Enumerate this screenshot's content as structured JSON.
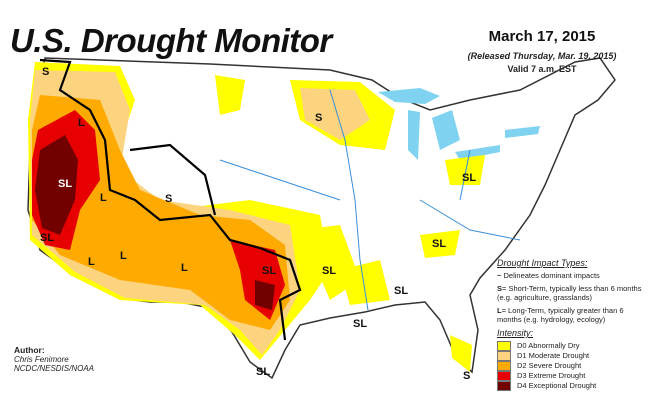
{
  "title": "U.S. Drought Monitor",
  "date": "March 17, 2015",
  "released": "(Released Thursday, Mar. 19, 2015)",
  "valid": "Valid 7 a.m. EST",
  "map_labels": [
    "S",
    "SL",
    "L",
    "S",
    "L",
    "L",
    "SL",
    "SL",
    "S",
    "SL",
    "SL",
    "SL",
    "L",
    "SL",
    "S",
    "SL"
  ],
  "legend": {
    "impact_title": "Drought Impact Types:",
    "delineates": "Delineates dominant impacts",
    "short_term_key": "S",
    "short_term": "= Short-Term, typically less than 6 months (e.g. agriculture, grasslands)",
    "long_term_key": "L",
    "long_term": "= Long-Term, typically greater than 6 months (e.g. hydrology, ecology)",
    "intensity_title": "Intensity:",
    "categories": [
      {
        "label": "D0 Abnormally Dry",
        "color": "#ffff00"
      },
      {
        "label": "D1 Moderate Drought",
        "color": "#fcd37f"
      },
      {
        "label": "D2 Severe Drought",
        "color": "#ffaa00"
      },
      {
        "label": "D3 Extreme Drought",
        "color": "#e60000"
      },
      {
        "label": "D4 Exceptional Drought",
        "color": "#730000"
      }
    ]
  },
  "author": {
    "heading": "Author:",
    "name": "Chris Fenimore",
    "org": "NCDC/NESDIS/NOAA"
  },
  "colors": {
    "water": "#7fd3f0",
    "rivers": "#3a8fd8",
    "boundaries": "#999999"
  }
}
